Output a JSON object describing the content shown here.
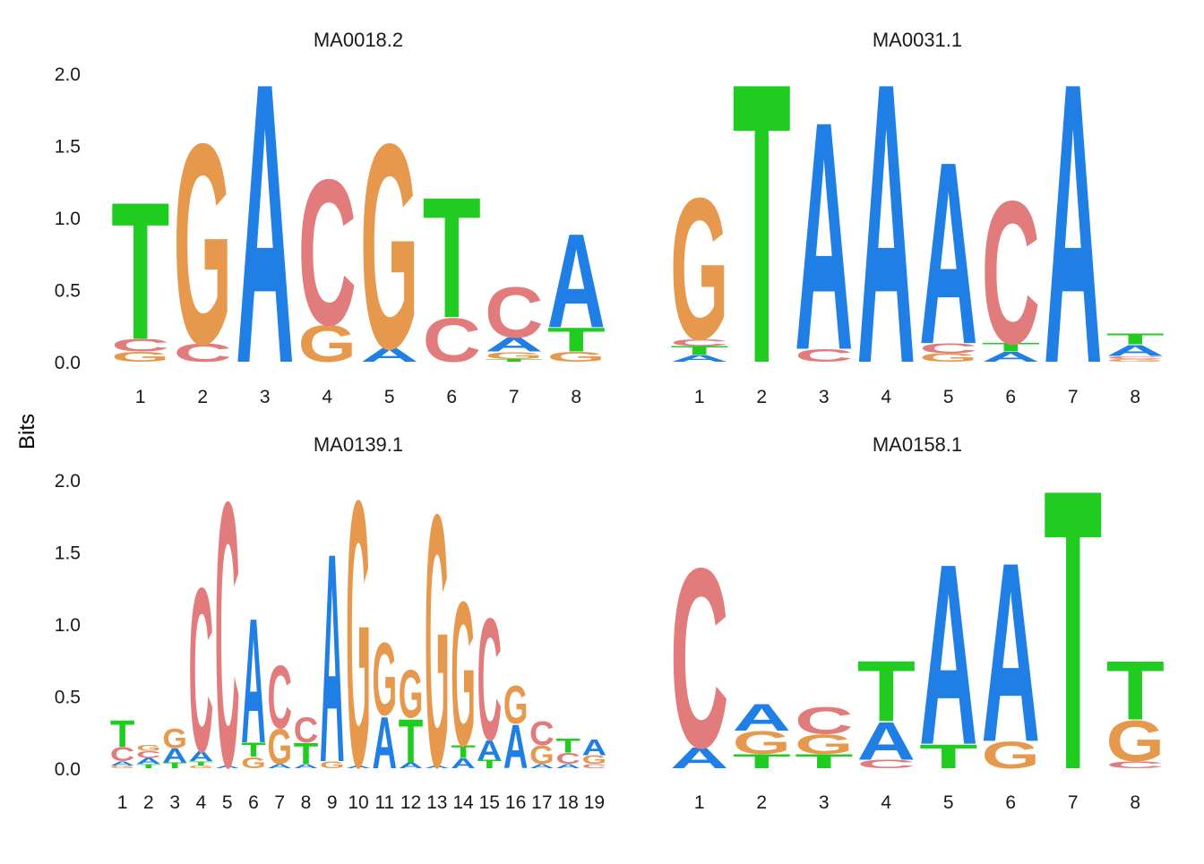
{
  "figure": {
    "ylabel": "Bits"
  },
  "colors": {
    "A": "#1f7fe4",
    "C": "#e27c7c",
    "G": "#e6994d",
    "T": "#1fcc1f"
  },
  "chart_data": [
    {
      "type": "sequence-logo",
      "title": "MA0018.2",
      "ylabel": "Bits",
      "ylim": [
        0,
        2
      ],
      "y_ticks": [
        "0.0",
        "0.5",
        "1.0",
        "1.5",
        "2.0"
      ],
      "x_ticks": [
        "1",
        "2",
        "3",
        "4",
        "5",
        "6",
        "7",
        "8"
      ],
      "positions": [
        {
          "pos": "1",
          "letters": [
            {
              "letter": "G",
              "bits": 0.07
            },
            {
              "letter": "C",
              "bits": 0.09
            },
            {
              "letter": "T",
              "bits": 0.98
            }
          ]
        },
        {
          "pos": "2",
          "letters": [
            {
              "letter": "C",
              "bits": 0.13
            },
            {
              "letter": "G",
              "bits": 1.43
            }
          ]
        },
        {
          "pos": "3",
          "letters": [
            {
              "letter": "A",
              "bits": 2.0
            }
          ]
        },
        {
          "pos": "4",
          "letters": [
            {
              "letter": "G",
              "bits": 0.26
            },
            {
              "letter": "C",
              "bits": 1.04
            }
          ]
        },
        {
          "pos": "5",
          "letters": [
            {
              "letter": "A",
              "bits": 0.1
            },
            {
              "letter": "G",
              "bits": 1.46
            }
          ]
        },
        {
          "pos": "6",
          "letters": [
            {
              "letter": "C",
              "bits": 0.31
            },
            {
              "letter": "T",
              "bits": 0.86
            }
          ]
        },
        {
          "pos": "7",
          "letters": [
            {
              "letter": "T",
              "bits": 0.02
            },
            {
              "letter": "G",
              "bits": 0.05
            },
            {
              "letter": "A",
              "bits": 0.1
            },
            {
              "letter": "C",
              "bits": 0.36
            }
          ]
        },
        {
          "pos": "8",
          "letters": [
            {
              "letter": "G",
              "bits": 0.07
            },
            {
              "letter": "T",
              "bits": 0.17
            },
            {
              "letter": "A",
              "bits": 0.67
            }
          ]
        }
      ]
    },
    {
      "type": "sequence-logo",
      "title": "MA0031.1",
      "ylabel": "",
      "ylim": [
        0,
        2
      ],
      "y_ticks": [],
      "x_ticks": [
        "1",
        "2",
        "3",
        "4",
        "5",
        "6",
        "7",
        "8"
      ],
      "positions": [
        {
          "pos": "1",
          "letters": [
            {
              "letter": "A",
              "bits": 0.05
            },
            {
              "letter": "T",
              "bits": 0.06
            },
            {
              "letter": "C",
              "bits": 0.05
            },
            {
              "letter": "G",
              "bits": 1.01
            }
          ]
        },
        {
          "pos": "2",
          "letters": [
            {
              "letter": "T",
              "bits": 2.0
            }
          ]
        },
        {
          "pos": "3",
          "letters": [
            {
              "letter": "C",
              "bits": 0.09
            },
            {
              "letter": "A",
              "bits": 1.63
            }
          ]
        },
        {
          "pos": "4",
          "letters": [
            {
              "letter": "A",
              "bits": 2.0
            }
          ]
        },
        {
          "pos": "5",
          "letters": [
            {
              "letter": "G",
              "bits": 0.06
            },
            {
              "letter": "C",
              "bits": 0.07
            },
            {
              "letter": "A",
              "bits": 1.3
            }
          ]
        },
        {
          "pos": "6",
          "letters": [
            {
              "letter": "A",
              "bits": 0.07
            },
            {
              "letter": "T",
              "bits": 0.06
            },
            {
              "letter": "C",
              "bits": 1.02
            }
          ]
        },
        {
          "pos": "7",
          "letters": [
            {
              "letter": "A",
              "bits": 2.0
            }
          ]
        },
        {
          "pos": "8",
          "letters": [
            {
              "letter": "G",
              "bits": 0.02
            },
            {
              "letter": "C",
              "bits": 0.02
            },
            {
              "letter": "A",
              "bits": 0.08
            },
            {
              "letter": "T",
              "bits": 0.08
            }
          ]
        }
      ]
    },
    {
      "type": "sequence-logo",
      "title": "MA0139.1",
      "ylabel": "Bits",
      "ylim": [
        0,
        2
      ],
      "y_ticks": [
        "0.0",
        "0.5",
        "1.0",
        "1.5",
        "2.0"
      ],
      "x_ticks": [
        "1",
        "2",
        "3",
        "4",
        "5",
        "6",
        "7",
        "8",
        "9",
        "10",
        "11",
        "12",
        "13",
        "14",
        "15",
        "16",
        "17",
        "18",
        "19"
      ],
      "positions": [
        {
          "pos": "1",
          "letters": [
            {
              "letter": "G",
              "bits": 0.02
            },
            {
              "letter": "A",
              "bits": 0.03
            },
            {
              "letter": "C",
              "bits": 0.1
            },
            {
              "letter": "T",
              "bits": 0.19
            }
          ]
        },
        {
          "pos": "2",
          "letters": [
            {
              "letter": "T",
              "bits": 0.03
            },
            {
              "letter": "A",
              "bits": 0.04
            },
            {
              "letter": "C",
              "bits": 0.05
            },
            {
              "letter": "G",
              "bits": 0.04
            }
          ]
        },
        {
          "pos": "3",
          "letters": [
            {
              "letter": "T",
              "bits": 0.04
            },
            {
              "letter": "A",
              "bits": 0.1
            },
            {
              "letter": "G",
              "bits": 0.14
            }
          ]
        },
        {
          "pos": "4",
          "letters": [
            {
              "letter": "G",
              "bits": 0.02
            },
            {
              "letter": "T",
              "bits": 0.03
            },
            {
              "letter": "A",
              "bits": 0.07
            },
            {
              "letter": "C",
              "bits": 1.17
            }
          ]
        },
        {
          "pos": "5",
          "letters": [
            {
              "letter": "A",
              "bits": 0.02
            },
            {
              "letter": "C",
              "bits": 1.89
            }
          ]
        },
        {
          "pos": "6",
          "letters": [
            {
              "letter": "G",
              "bits": 0.08
            },
            {
              "letter": "T",
              "bits": 0.1
            },
            {
              "letter": "A",
              "bits": 0.89
            }
          ]
        },
        {
          "pos": "7",
          "letters": [
            {
              "letter": "A",
              "bits": 0.03
            },
            {
              "letter": "G",
              "bits": 0.25
            },
            {
              "letter": "C",
              "bits": 0.45
            }
          ]
        },
        {
          "pos": "8",
          "letters": [
            {
              "letter": "A",
              "bits": 0.03
            },
            {
              "letter": "T",
              "bits": 0.15
            },
            {
              "letter": "C",
              "bits": 0.18
            }
          ]
        },
        {
          "pos": "9",
          "letters": [
            {
              "letter": "G",
              "bits": 0.05
            },
            {
              "letter": "A",
              "bits": 1.49
            }
          ]
        },
        {
          "pos": "10",
          "letters": [
            {
              "letter": "A",
              "bits": 0.02
            },
            {
              "letter": "G",
              "bits": 1.9
            }
          ]
        },
        {
          "pos": "11",
          "letters": [
            {
              "letter": "A",
              "bits": 0.37
            },
            {
              "letter": "G",
              "bits": 0.52
            }
          ]
        },
        {
          "pos": "12",
          "letters": [
            {
              "letter": "A",
              "bits": 0.04
            },
            {
              "letter": "T",
              "bits": 0.31
            },
            {
              "letter": "G",
              "bits": 0.34
            }
          ]
        },
        {
          "pos": "13",
          "letters": [
            {
              "letter": "A",
              "bits": 0.02
            },
            {
              "letter": "G",
              "bits": 1.8
            }
          ]
        },
        {
          "pos": "14",
          "letters": [
            {
              "letter": "A",
              "bits": 0.07
            },
            {
              "letter": "T",
              "bits": 0.09
            },
            {
              "letter": "G",
              "bits": 1.03
            }
          ]
        },
        {
          "pos": "15",
          "letters": [
            {
              "letter": "T",
              "bits": 0.06
            },
            {
              "letter": "A",
              "bits": 0.14
            },
            {
              "letter": "C",
              "bits": 0.87
            }
          ]
        },
        {
          "pos": "16",
          "letters": [
            {
              "letter": "A",
              "bits": 0.31
            },
            {
              "letter": "G",
              "bits": 0.27
            }
          ]
        },
        {
          "pos": "17",
          "letters": [
            {
              "letter": "A",
              "bits": 0.03
            },
            {
              "letter": "G",
              "bits": 0.13
            },
            {
              "letter": "C",
              "bits": 0.17
            }
          ]
        },
        {
          "pos": "18",
          "letters": [
            {
              "letter": "A",
              "bits": 0.03
            },
            {
              "letter": "C",
              "bits": 0.08
            },
            {
              "letter": "T",
              "bits": 0.1
            }
          ]
        },
        {
          "pos": "19",
          "letters": [
            {
              "letter": "C",
              "bits": 0.03
            },
            {
              "letter": "G",
              "bits": 0.06
            },
            {
              "letter": "A",
              "bits": 0.11
            }
          ]
        }
      ]
    },
    {
      "type": "sequence-logo",
      "title": "MA0158.1",
      "ylabel": "",
      "ylim": [
        0,
        2
      ],
      "y_ticks": [],
      "x_ticks": [
        "1",
        "2",
        "3",
        "4",
        "5",
        "6",
        "7",
        "8"
      ],
      "positions": [
        {
          "pos": "1",
          "letters": [
            {
              "letter": "A",
              "bits": 0.15
            },
            {
              "letter": "C",
              "bits": 1.28
            }
          ]
        },
        {
          "pos": "2",
          "letters": [
            {
              "letter": "T",
              "bits": 0.1
            },
            {
              "letter": "G",
              "bits": 0.16
            },
            {
              "letter": "A",
              "bits": 0.19
            }
          ]
        },
        {
          "pos": "3",
          "letters": [
            {
              "letter": "T",
              "bits": 0.1
            },
            {
              "letter": "G",
              "bits": 0.14
            },
            {
              "letter": "C",
              "bits": 0.19
            }
          ]
        },
        {
          "pos": "4",
          "letters": [
            {
              "letter": "C",
              "bits": 0.06
            },
            {
              "letter": "A",
              "bits": 0.27
            },
            {
              "letter": "T",
              "bits": 0.43
            }
          ]
        },
        {
          "pos": "5",
          "letters": [
            {
              "letter": "T",
              "bits": 0.17
            },
            {
              "letter": "A",
              "bits": 1.29
            }
          ]
        },
        {
          "pos": "6",
          "letters": [
            {
              "letter": "G",
              "bits": 0.19
            },
            {
              "letter": "A",
              "bits": 1.28
            }
          ]
        },
        {
          "pos": "7",
          "letters": [
            {
              "letter": "T",
              "bits": 2.0
            }
          ]
        },
        {
          "pos": "8",
          "letters": [
            {
              "letter": "C",
              "bits": 0.05
            },
            {
              "letter": "G",
              "bits": 0.29
            },
            {
              "letter": "T",
              "bits": 0.42
            }
          ]
        }
      ]
    }
  ]
}
